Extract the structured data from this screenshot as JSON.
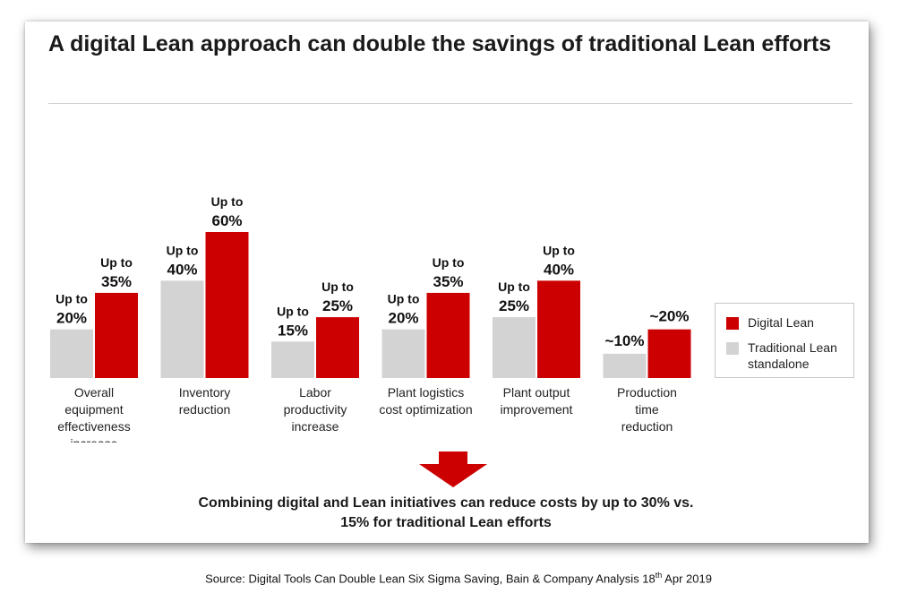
{
  "title": "A digital Lean approach can double the savings of traditional Lean efforts",
  "legend": [
    {
      "label": "Digital Lean",
      "color": "#CC0000"
    },
    {
      "label": "Traditional Lean standalone",
      "color": "#D3D3D3"
    }
  ],
  "conclusion": "Combining digital and Lean initiatives can reduce costs by up to 30% vs. 15% for traditional Lean efforts",
  "source": {
    "text": "Source: Digital Tools Can Double Lean Six Sigma Saving, Bain & Company Analysis 18",
    "sup": "th",
    "suffix": " Apr 2019"
  },
  "chart_data": {
    "type": "bar",
    "title": "A digital Lean approach can double the savings of traditional Lean efforts",
    "categories": [
      "Overall equipment effectiveness increase",
      "Inventory reduction",
      "Labor productivity increase",
      "Plant logistics cost optimization",
      "Plant output improvement",
      "Production time reduction"
    ],
    "category_lines": [
      [
        "Overall",
        "equipment",
        "effectiveness",
        "increase"
      ],
      [
        "Inventory",
        "reduction"
      ],
      [
        "Labor",
        "productivity",
        "increase"
      ],
      [
        "Plant logistics",
        "cost optimization"
      ],
      [
        "Plant output",
        "improvement"
      ],
      [
        "Production",
        "time",
        "reduction"
      ]
    ],
    "series": [
      {
        "name": "Traditional Lean standalone",
        "color": "#D3D3D3",
        "values": [
          20,
          40,
          15,
          20,
          25,
          10
        ],
        "labels": [
          [
            "Up to",
            "20%"
          ],
          [
            "Up to",
            "40%"
          ],
          [
            "Up to",
            "15%"
          ],
          [
            "Up to",
            "20%"
          ],
          [
            "Up to",
            "25%"
          ],
          [
            "~10%"
          ]
        ]
      },
      {
        "name": "Digital Lean",
        "color": "#CC0000",
        "values": [
          35,
          60,
          25,
          35,
          40,
          20
        ],
        "labels": [
          [
            "Up to",
            "35%"
          ],
          [
            "Up to",
            "60%"
          ],
          [
            "Up to",
            "25%"
          ],
          [
            "Up to",
            "35%"
          ],
          [
            "Up to",
            "40%"
          ],
          [
            "~20%"
          ]
        ]
      }
    ],
    "ylim": [
      0,
      60
    ],
    "xlabel": "",
    "ylabel": "",
    "grid": false,
    "legend_position": "right"
  }
}
